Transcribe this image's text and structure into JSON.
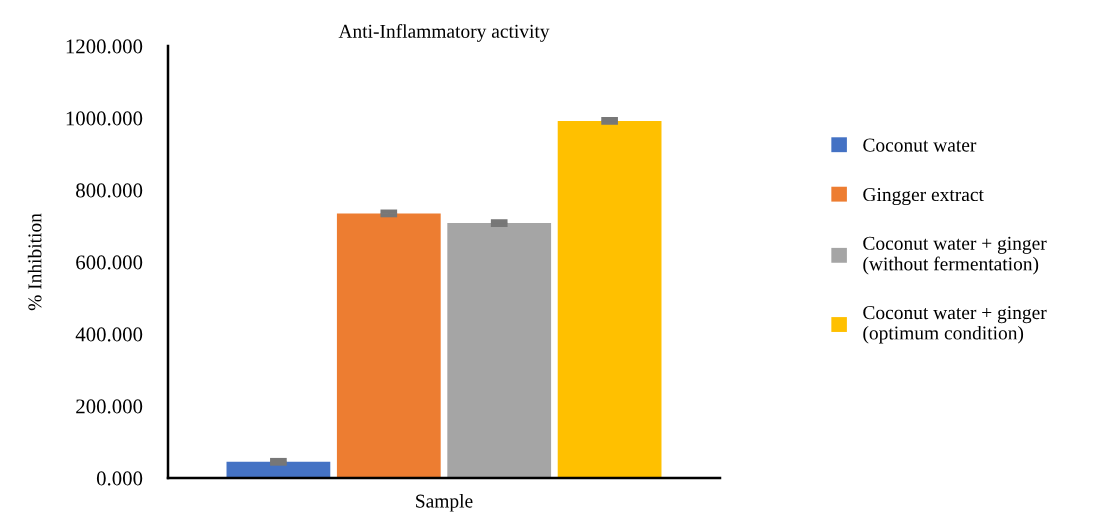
{
  "chart_data": {
    "type": "bar",
    "title": "Anti-Inflammatory activity",
    "xlabel": "Sample",
    "ylabel": "% Inhibition",
    "categories": [
      null
    ],
    "series": [
      {
        "name": "Coconut water",
        "color": "#4472c4",
        "values": [
          45
        ],
        "errors": [
          5
        ]
      },
      {
        "name": "Gingger extract",
        "color": "#ed7d31",
        "values": [
          735
        ],
        "errors": [
          5
        ]
      },
      {
        "name": "Coconut water + ginger\n(without fermentation)",
        "color": "#a5a5a5",
        "values": [
          708
        ],
        "errors": [
          5
        ]
      },
      {
        "name": "Coconut water + ginger\n(optimum condition)",
        "color": "#ffc000",
        "values": [
          992
        ],
        "errors": [
          5
        ]
      }
    ],
    "ylim": [
      0,
      1200
    ],
    "yticks": [
      {
        "value": 0,
        "label": "0.000"
      },
      {
        "value": 200,
        "label": "200.000"
      },
      {
        "value": 400,
        "label": "400.000"
      },
      {
        "value": 600,
        "label": "600.000"
      },
      {
        "value": 800,
        "label": "800.000"
      },
      {
        "value": 1000,
        "label": "1000.000"
      },
      {
        "value": 1200,
        "label": "1200.000"
      }
    ],
    "grid": false,
    "legend": "right"
  }
}
